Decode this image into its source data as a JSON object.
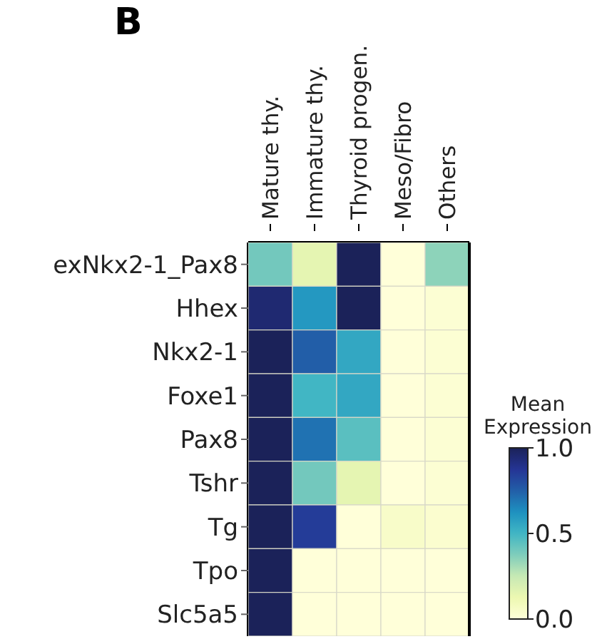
{
  "chart_data": {
    "type": "heatmap",
    "annotations": [
      "B"
    ],
    "clabel": "Mean Expression",
    "categories": [
      "Mature thy.",
      "Immature thy.",
      "Thyroid progen.",
      "Meso/Fibro",
      "Others"
    ],
    "y_categories": [
      "exNkx2-1_Pax8",
      "Hhex",
      "Nkx2-1",
      "Foxe1",
      "Pax8",
      "Tshr",
      "Tg",
      "Tpo",
      "Slc5a5"
    ],
    "cells": [
      [
        0.4,
        0.15,
        1.0,
        0.0,
        0.35
      ],
      [
        0.95,
        0.6,
        1.0,
        0.0,
        0.02
      ],
      [
        1.0,
        0.75,
        0.55,
        0.0,
        0.02
      ],
      [
        1.0,
        0.5,
        0.55,
        0.0,
        0.02
      ],
      [
        1.0,
        0.7,
        0.45,
        0.0,
        0.02
      ],
      [
        1.0,
        0.4,
        0.15,
        0.0,
        0.02
      ],
      [
        1.0,
        0.85,
        0.0,
        0.05,
        0.03
      ],
      [
        1.0,
        0.0,
        0.0,
        0.0,
        0.0
      ],
      [
        1.0,
        0.0,
        0.0,
        0.0,
        0.0
      ]
    ],
    "clim": [
      0,
      1
    ],
    "cticks": [
      {
        "value": 0,
        "label": "0.0"
      },
      0.5,
      {
        "value": 1,
        "label": "1.0"
      }
    ]
  }
}
